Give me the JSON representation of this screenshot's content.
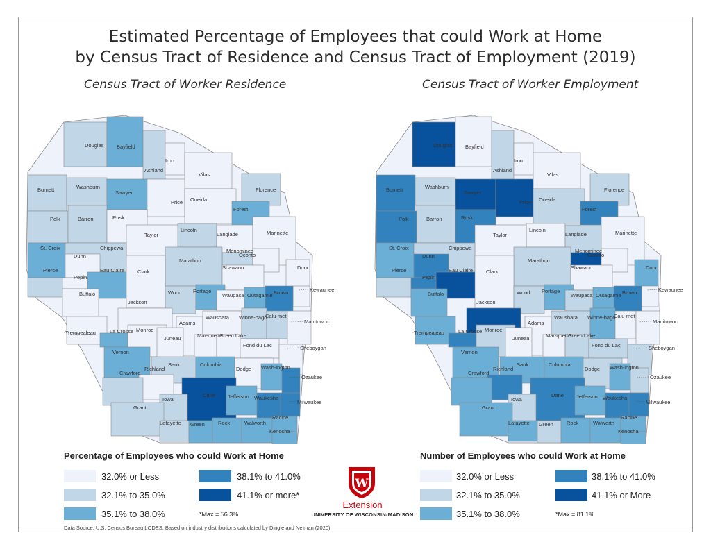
{
  "title_line1": "Estimated Percentage of Employees that could Work at Home",
  "title_line2": "by Census Tract of Residence and Census Tract of Employment (2019)",
  "colors": {
    "class1": "#eef2fb",
    "class2": "#c1d6e7",
    "class3": "#6baed6",
    "class4": "#3182bd",
    "class5": "#08519c",
    "border": "#8a8a8a"
  },
  "maps": [
    {
      "subtitle": "Census Tract of Worker Residence",
      "counties": [
        {
          "name": "Douglas",
          "class": 2
        },
        {
          "name": "Bayfield",
          "class": 3
        },
        {
          "name": "Ashland",
          "class": 2
        },
        {
          "name": "Iron",
          "class": 1
        },
        {
          "name": "Vilas",
          "class": 1
        },
        {
          "name": "Florence",
          "class": 2
        },
        {
          "name": "Burnett",
          "class": 2
        },
        {
          "name": "Washburn",
          "class": 2
        },
        {
          "name": "Sawyer",
          "class": 3
        },
        {
          "name": "Price",
          "class": 1
        },
        {
          "name": "Oneida",
          "class": 1
        },
        {
          "name": "Forest",
          "class": 3
        },
        {
          "name": "Polk",
          "class": 2
        },
        {
          "name": "Barron",
          "class": 2
        },
        {
          "name": "Rusk",
          "class": 1
        },
        {
          "name": "Lincoln",
          "class": 2
        },
        {
          "name": "Taylor",
          "class": 1
        },
        {
          "name": "Langlade",
          "class": 1
        },
        {
          "name": "Marinette",
          "class": 1
        },
        {
          "name": "St. Croix",
          "class": 3
        },
        {
          "name": "Chippewa",
          "class": 2
        },
        {
          "name": "Menominee",
          "class": 2
        },
        {
          "name": "Oconto",
          "class": 1
        },
        {
          "name": "Dunn",
          "class": 1
        },
        {
          "name": "Marathon",
          "class": 2
        },
        {
          "name": "Shawano",
          "class": 1
        },
        {
          "name": "Door",
          "class": 1
        },
        {
          "name": "Pierce",
          "class": 2
        },
        {
          "name": "Eau Claire",
          "class": 3
        },
        {
          "name": "Clark",
          "class": 1
        },
        {
          "name": "Pepin",
          "class": 1
        },
        {
          "name": "Kewaunee",
          "class": 1
        },
        {
          "name": "Buffalo",
          "class": 1
        },
        {
          "name": "Wood",
          "class": 2
        },
        {
          "name": "Portage",
          "class": 3
        },
        {
          "name": "Waupaca",
          "class": 1
        },
        {
          "name": "Outagamie",
          "class": 3
        },
        {
          "name": "Brown",
          "class": 4
        },
        {
          "name": "Jackson",
          "class": 1
        },
        {
          "name": "Adams",
          "class": 1
        },
        {
          "name": "Waushara",
          "class": 1
        },
        {
          "name": "Winne-bago",
          "class": 2
        },
        {
          "name": "Calu-met",
          "class": 2
        },
        {
          "name": "Manitowoc",
          "class": 1
        },
        {
          "name": "Trempealeau",
          "class": 1
        },
        {
          "name": "La Crosse",
          "class": 3
        },
        {
          "name": "Monroe",
          "class": 1
        },
        {
          "name": "Juneau",
          "class": 1
        },
        {
          "name": "Mar-quette",
          "class": 1
        },
        {
          "name": "Green Lake",
          "class": 1
        },
        {
          "name": "Fond du Lac",
          "class": 1
        },
        {
          "name": "Sheboygan",
          "class": 1
        },
        {
          "name": "Vernon",
          "class": 3
        },
        {
          "name": "Sauk",
          "class": 2
        },
        {
          "name": "Columbia",
          "class": 3
        },
        {
          "name": "Dodge",
          "class": 1
        },
        {
          "name": "Wash-ington",
          "class": 3
        },
        {
          "name": "Ozaukee",
          "class": 4
        },
        {
          "name": "Richland",
          "class": 1
        },
        {
          "name": "Crawford",
          "class": 2
        },
        {
          "name": "Dane",
          "class": 5
        },
        {
          "name": "Iowa",
          "class": 2
        },
        {
          "name": "Jefferson",
          "class": 3
        },
        {
          "name": "Waukesha",
          "class": 4
        },
        {
          "name": "Milwaukee",
          "class": 4
        },
        {
          "name": "Grant",
          "class": 2
        },
        {
          "name": "Lafayette",
          "class": 2
        },
        {
          "name": "Green",
          "class": 3
        },
        {
          "name": "Rock",
          "class": 3
        },
        {
          "name": "Walworth",
          "class": 3
        },
        {
          "name": "Racine",
          "class": 3
        },
        {
          "name": "Kenosha",
          "class": 3
        }
      ]
    },
    {
      "subtitle": "Census Tract of Worker Employment",
      "counties": [
        {
          "name": "Douglas",
          "class": 5
        },
        {
          "name": "Bayfield",
          "class": 1
        },
        {
          "name": "Ashland",
          "class": 2
        },
        {
          "name": "Iron",
          "class": 1
        },
        {
          "name": "Vilas",
          "class": 1
        },
        {
          "name": "Florence",
          "class": 2
        },
        {
          "name": "Burnett",
          "class": 4
        },
        {
          "name": "Washburn",
          "class": 2
        },
        {
          "name": "Sawyer",
          "class": 5
        },
        {
          "name": "Price",
          "class": 5
        },
        {
          "name": "Oneida",
          "class": 2
        },
        {
          "name": "Forest",
          "class": 4
        },
        {
          "name": "Polk",
          "class": 4
        },
        {
          "name": "Barron",
          "class": 2
        },
        {
          "name": "Rusk",
          "class": 4
        },
        {
          "name": "Lincoln",
          "class": 1
        },
        {
          "name": "Taylor",
          "class": 1
        },
        {
          "name": "Langlade",
          "class": 2
        },
        {
          "name": "Marinette",
          "class": 1
        },
        {
          "name": "St. Croix",
          "class": 3
        },
        {
          "name": "Chippewa",
          "class": 2
        },
        {
          "name": "Menominee",
          "class": 5
        },
        {
          "name": "Oconto",
          "class": 1
        },
        {
          "name": "Dunn",
          "class": 4
        },
        {
          "name": "Marathon",
          "class": 2
        },
        {
          "name": "Shawano",
          "class": 1
        },
        {
          "name": "Door",
          "class": 3
        },
        {
          "name": "Pierce",
          "class": 2
        },
        {
          "name": "Eau Claire",
          "class": 5
        },
        {
          "name": "Clark",
          "class": 1
        },
        {
          "name": "Pepin",
          "class": 4
        },
        {
          "name": "Kewaunee",
          "class": 1
        },
        {
          "name": "Buffalo",
          "class": 3
        },
        {
          "name": "Wood",
          "class": 2
        },
        {
          "name": "Portage",
          "class": 3
        },
        {
          "name": "Waupaca",
          "class": 2
        },
        {
          "name": "Outagamie",
          "class": 3
        },
        {
          "name": "Brown",
          "class": 4
        },
        {
          "name": "Jackson",
          "class": 5
        },
        {
          "name": "Adams",
          "class": 1
        },
        {
          "name": "Waushara",
          "class": 2
        },
        {
          "name": "Winne-bago",
          "class": 3
        },
        {
          "name": "Calu-met",
          "class": 1
        },
        {
          "name": "Manitowoc",
          "class": 1
        },
        {
          "name": "Trempealeau",
          "class": 3
        },
        {
          "name": "La Crosse",
          "class": 4
        },
        {
          "name": "Monroe",
          "class": 2
        },
        {
          "name": "Juneau",
          "class": 1
        },
        {
          "name": "Mar-quette",
          "class": 1
        },
        {
          "name": "Green Lake",
          "class": 2
        },
        {
          "name": "Fond du Lac",
          "class": 2
        },
        {
          "name": "Sheboygan",
          "class": 2
        },
        {
          "name": "Vernon",
          "class": 3
        },
        {
          "name": "Sauk",
          "class": 3
        },
        {
          "name": "Columbia",
          "class": 3
        },
        {
          "name": "Dodge",
          "class": 2
        },
        {
          "name": "Wash-ington",
          "class": 3
        },
        {
          "name": "Ozaukee",
          "class": 2
        },
        {
          "name": "Richland",
          "class": 4
        },
        {
          "name": "Crawford",
          "class": 3
        },
        {
          "name": "Dane",
          "class": 4
        },
        {
          "name": "Iowa",
          "class": 2
        },
        {
          "name": "Jefferson",
          "class": 3
        },
        {
          "name": "Waukesha",
          "class": 4
        },
        {
          "name": "Milwaukee",
          "class": 4
        },
        {
          "name": "Grant",
          "class": 3
        },
        {
          "name": "Lafayette",
          "class": 3
        },
        {
          "name": "Green",
          "class": 2
        },
        {
          "name": "Rock",
          "class": 3
        },
        {
          "name": "Walworth",
          "class": 3
        },
        {
          "name": "Racine",
          "class": 3
        },
        {
          "name": "Kenosha",
          "class": 3
        }
      ]
    }
  ],
  "legend_left": {
    "title": "Percentage of Employees who could Work at Home",
    "items": [
      "32.0% or Less",
      "32.1% to 35.0%",
      "35.1% to 38.0%",
      "38.1% to 41.0%",
      "41.1% or more*"
    ],
    "max_note": "*Max = 56.3%"
  },
  "legend_right": {
    "title": "Number of Employees who could Work at Home",
    "items": [
      "32.0% or Less",
      "32.1% to 35.0%",
      "35.1% to 38.0%",
      "38.1% to 41.0%",
      "41.1% or More"
    ],
    "max_note": "*Max = 81.1%"
  },
  "logo": {
    "extension": "Extension",
    "university": "UNIVERSITY OF WISCONSIN-MADISON",
    "mark": "W"
  },
  "source": "Data Source: U.S. Census Bureau LODES; Based on industry distributions calculated by Dingle and Neiman (2020)"
}
